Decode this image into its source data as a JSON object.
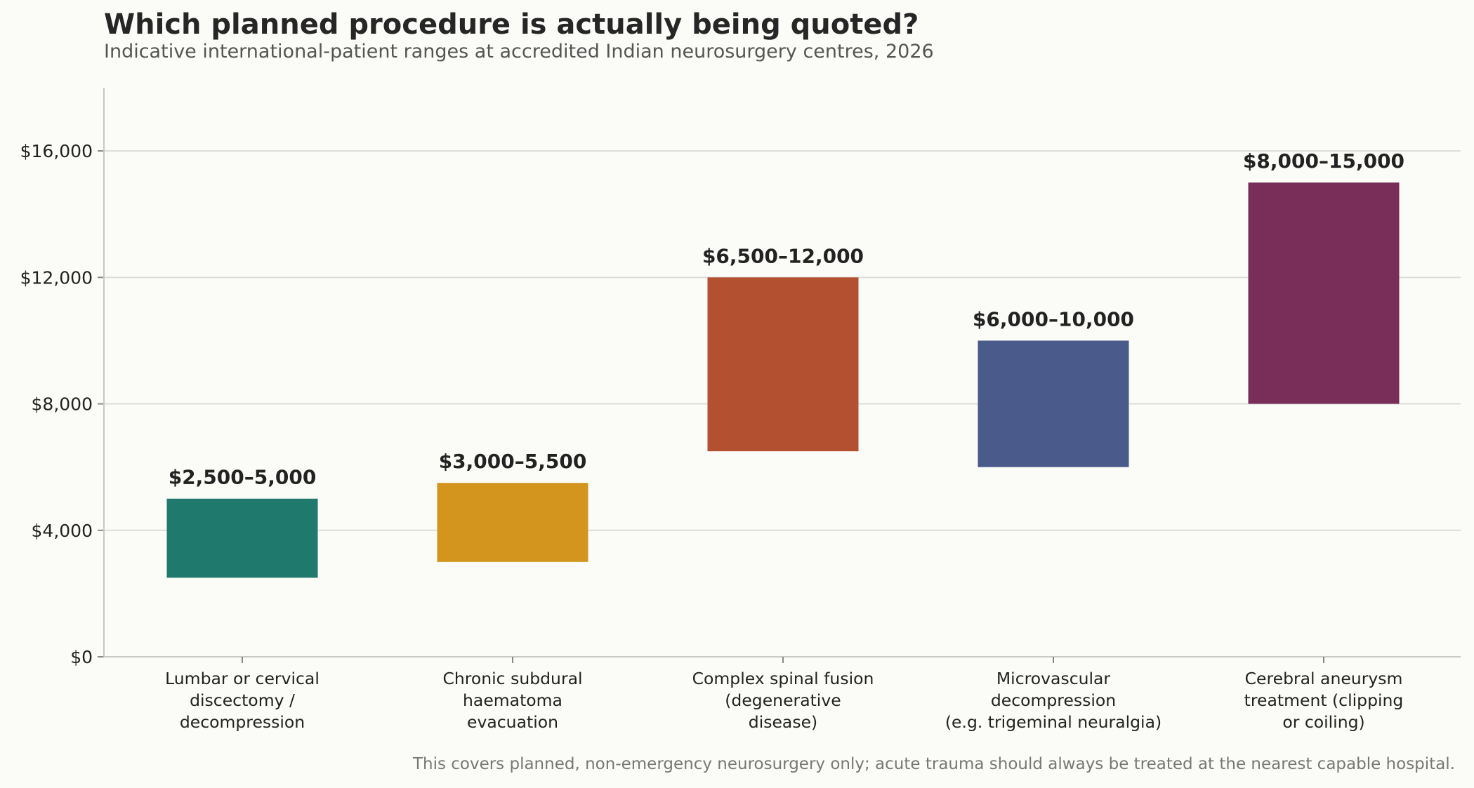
{
  "header": {
    "title": "Which planned procedure is actually being quoted?",
    "subtitle": "Indicative international-patient ranges at accredited Indian neurosurgery centres, 2026"
  },
  "footnote": "This covers planned, non-emergency neurosurgery only; acute trauma should always be treated at the nearest capable hospital.",
  "chart_data": {
    "type": "bar",
    "subtype": "floating-range",
    "title": "Which planned procedure is actually being quoted?",
    "subtitle": "Indicative international-patient ranges at accredited Indian neurosurgery centres, 2026",
    "xlabel": "",
    "ylabel": "",
    "ylim": [
      0,
      18000
    ],
    "yticks": [
      0,
      4000,
      8000,
      12000,
      16000
    ],
    "ytick_labels": [
      "$0",
      "$4,000",
      "$8,000",
      "$12,000",
      "$16,000"
    ],
    "grid": "horizontal",
    "legend": "none",
    "categories": [
      [
        "Lumbar or cervical",
        "discectomy /",
        "decompression"
      ],
      [
        "Chronic subdural",
        "haematoma",
        "evacuation"
      ],
      [
        "Complex spinal fusion",
        "(degenerative",
        "disease)"
      ],
      [
        "Microvascular",
        "decompression",
        "(e.g. trigeminal neuralgia)"
      ],
      [
        "Cerebral aneurysm",
        "treatment (clipping",
        "or coiling)"
      ]
    ],
    "ranges": [
      {
        "low": 2500,
        "high": 5000,
        "label": "$2,500–5,000",
        "color": "#1f7a6d"
      },
      {
        "low": 3000,
        "high": 5500,
        "label": "$3,000–5,500",
        "color": "#d4951f"
      },
      {
        "low": 6500,
        "high": 12000,
        "label": "$6,500–12,000",
        "color": "#b2502f"
      },
      {
        "low": 6000,
        "high": 10000,
        "label": "$6,000–10,000",
        "color": "#4a5a8b"
      },
      {
        "low": 8000,
        "high": 15000,
        "label": "$8,000–15,000",
        "color": "#792e59"
      }
    ]
  }
}
